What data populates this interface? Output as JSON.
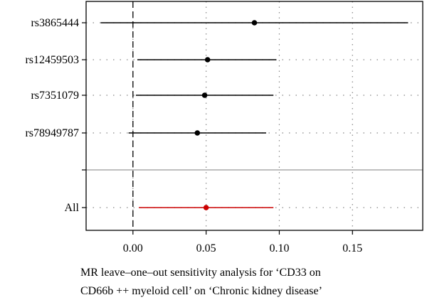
{
  "chart_data": {
    "type": "forest",
    "title": "",
    "xlabel_lines": [
      "MR leave–one–out sensitivity analysis for ‘CD33 on",
      "CD66b ++ myeloid cell’ on ‘Chronic kidney disease’"
    ],
    "xlim": [
      -0.032,
      0.198
    ],
    "xticks": [
      0.0,
      0.05,
      0.1,
      0.15
    ],
    "xtick_labels": [
      "0.00",
      "0.05",
      "0.10",
      "0.15"
    ],
    "grid": true,
    "rows": [
      {
        "label": "rs3865444",
        "estimate": 0.083,
        "lower": -0.022,
        "upper": 0.188,
        "color": "#000000"
      },
      {
        "label": "rs12459503",
        "estimate": 0.051,
        "lower": 0.003,
        "upper": 0.098,
        "color": "#000000"
      },
      {
        "label": "rs7351079",
        "estimate": 0.049,
        "lower": 0.002,
        "upper": 0.096,
        "color": "#000000"
      },
      {
        "label": "rs78949787",
        "estimate": 0.044,
        "lower": -0.003,
        "upper": 0.091,
        "color": "#000000"
      },
      {
        "label": "All",
        "estimate": 0.05,
        "lower": 0.004,
        "upper": 0.096,
        "color": "#cc0000"
      }
    ],
    "reference_line": 0,
    "separator_after_row": 3
  }
}
